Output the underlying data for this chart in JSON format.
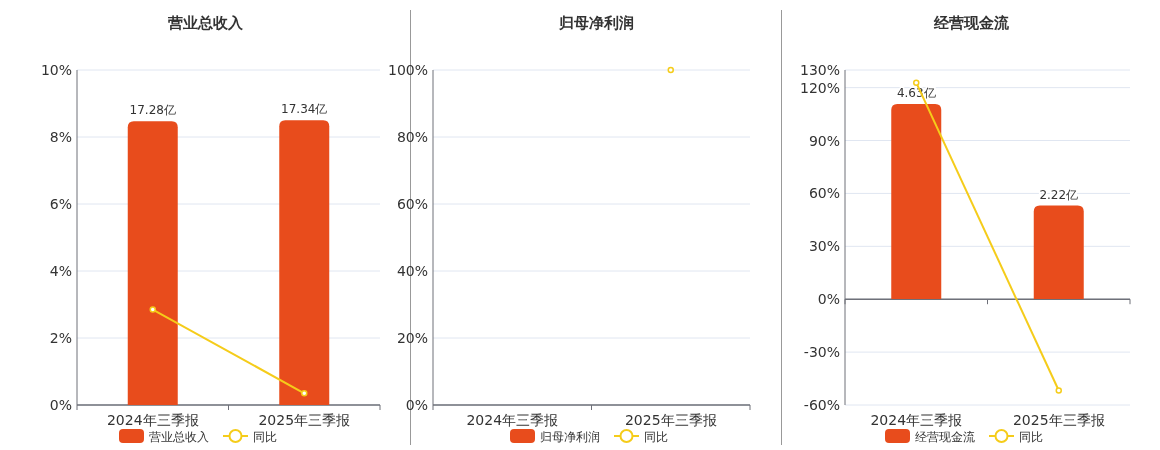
{
  "chart_data": [
    {
      "type": "bar",
      "title": "营业总收入",
      "categories": [
        "2024年三季报",
        "2025年三季报"
      ],
      "ylim": [
        0,
        10
      ],
      "yticks": [
        {
          "value": 0,
          "label": "0%"
        },
        {
          "value": 2,
          "label": "2%"
        },
        {
          "value": 4,
          "label": "4%"
        },
        {
          "value": 6,
          "label": "6%"
        },
        {
          "value": 8,
          "label": "8%"
        },
        {
          "value": 10,
          "label": "10%"
        }
      ],
      "y2lim": [
        0,
        20.4
      ],
      "grid": "y",
      "legend": "bottom",
      "series": [
        {
          "name": "营业总收入",
          "axis": "y2",
          "color": "#e84c1c",
          "values": [
            17.28,
            17.34
          ],
          "value_labels": [
            "17.28亿",
            "17.34亿"
          ]
        },
        {
          "name": "同比",
          "type": "line",
          "color": "#f5cc1a",
          "marker": "circle",
          "values": [
            2.85,
            0.35
          ]
        }
      ]
    },
    {
      "type": "bar",
      "title": "归母净利润",
      "categories": [
        "2024年三季报",
        "2025年三季报"
      ],
      "ylim": [
        0,
        100
      ],
      "yticks": [
        {
          "value": 0,
          "label": "0%"
        },
        {
          "value": 20,
          "label": "20%"
        },
        {
          "value": 40,
          "label": "40%"
        },
        {
          "value": 60,
          "label": "60%"
        },
        {
          "value": 80,
          "label": "80%"
        },
        {
          "value": 100,
          "label": "100%"
        }
      ],
      "grid": "y",
      "legend": "bottom",
      "series": [
        {
          "name": "归母净利润",
          "color": "#e84c1c",
          "values": [
            null,
            null
          ]
        },
        {
          "name": "同比",
          "type": "line",
          "color": "#f5cc1a",
          "marker": "circle",
          "values": [
            null,
            100
          ]
        }
      ]
    },
    {
      "type": "bar",
      "title": "经营现金流",
      "categories": [
        "2024年三季报",
        "2025年三季报"
      ],
      "ylim": [
        -60,
        130
      ],
      "yticks": [
        {
          "value": -60,
          "label": "-60%"
        },
        {
          "value": -30,
          "label": "-30%"
        },
        {
          "value": 0,
          "label": "0%"
        },
        {
          "value": 30,
          "label": "30%"
        },
        {
          "value": 60,
          "label": "60%"
        },
        {
          "value": 90,
          "label": "90%"
        },
        {
          "value": 120,
          "label": "120%"
        },
        {
          "value": 130,
          "label": "130%"
        }
      ],
      "y2lim": [
        -2.52,
        5.44
      ],
      "grid": "y",
      "legend": "bottom",
      "series": [
        {
          "name": "经营现金流",
          "axis": "y2",
          "color": "#e84c1c",
          "values": [
            4.63,
            2.22
          ],
          "value_labels": [
            "4.63亿",
            "2.22亿"
          ]
        },
        {
          "name": "同比",
          "type": "line",
          "color": "#f5cc1a",
          "marker": "circle",
          "values": [
            122.8,
            -51.8
          ]
        }
      ]
    }
  ]
}
